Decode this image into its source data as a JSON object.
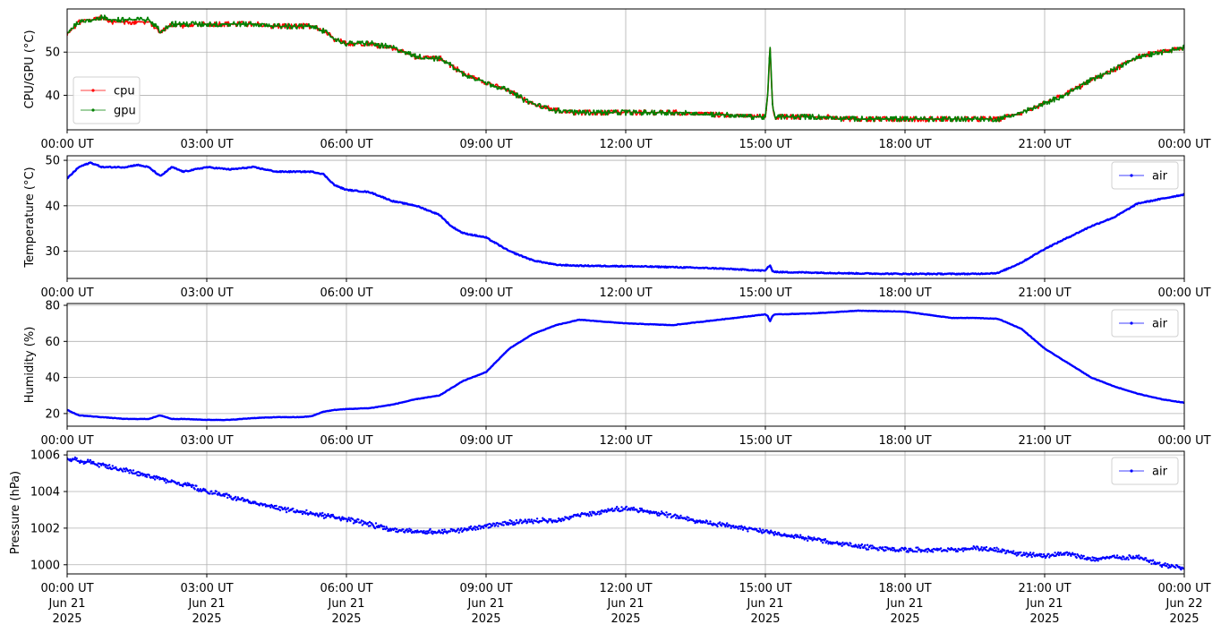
{
  "x_ticks": [
    "00:00 UT",
    "03:00 UT",
    "06:00 UT",
    "09:00 UT",
    "12:00 UT",
    "15:00 UT",
    "18:00 UT",
    "21:00 UT",
    "00:00 UT"
  ],
  "date_ticks": [
    {
      "md": "Jun 21",
      "y": "2025"
    },
    {
      "md": "Jun 21",
      "y": "2025"
    },
    {
      "md": "Jun 21",
      "y": "2025"
    },
    {
      "md": "Jun 21",
      "y": "2025"
    },
    {
      "md": "Jun 21",
      "y": "2025"
    },
    {
      "md": "Jun 21",
      "y": "2025"
    },
    {
      "md": "Jun 21",
      "y": "2025"
    },
    {
      "md": "Jun 21",
      "y": "2025"
    },
    {
      "md": "Jun 22",
      "y": "2025"
    }
  ],
  "chart_data": [
    {
      "type": "line",
      "ylabel": "CPU/GPU (°C)",
      "xlim": [
        "2025-06-21 00:00",
        "2025-06-22 00:00"
      ],
      "ylim": [
        32,
        60
      ],
      "yticks": [
        40,
        50
      ],
      "grid": true,
      "legend": "lower-left",
      "x_hours": [
        0,
        0.25,
        0.5,
        0.75,
        1,
        1.25,
        1.5,
        1.75,
        2,
        2.25,
        2.5,
        3,
        3.5,
        4,
        4.5,
        5,
        5.25,
        5.5,
        5.75,
        6,
        6.5,
        7,
        7.5,
        8,
        8.25,
        8.5,
        9,
        9.5,
        10,
        10.5,
        11,
        12,
        13,
        14,
        15,
        15.05,
        15.1,
        15.15,
        15.2,
        15.3,
        16,
        17,
        18,
        19,
        19.5,
        20,
        20.5,
        21,
        21.5,
        22,
        22.5,
        23,
        23.5,
        24
      ],
      "series": [
        {
          "name": "cpu",
          "color": "#ff0000",
          "values": [
            54,
            57,
            57.5,
            58,
            57,
            57,
            57,
            57,
            54.5,
            56.5,
            56,
            56.5,
            56.5,
            56.5,
            56,
            56,
            56,
            55,
            53,
            52,
            52,
            51,
            49,
            48.5,
            47,
            45,
            43,
            41,
            38,
            36.5,
            36,
            36,
            36,
            35.5,
            35,
            40,
            52,
            38,
            35,
            35,
            35,
            34.5,
            34.5,
            34.5,
            34.5,
            34.5,
            36,
            38,
            40.5,
            43.5,
            46,
            49,
            50,
            51
          ]
        },
        {
          "name": "gpu",
          "color": "#008000",
          "values": [
            54.5,
            57,
            57.5,
            58,
            57.5,
            57.5,
            57.5,
            57.5,
            55,
            56.5,
            56.5,
            56.5,
            56.5,
            56.5,
            56,
            56,
            56,
            55,
            53,
            52,
            52,
            51,
            49,
            48.5,
            47,
            45,
            43,
            41,
            38,
            36.5,
            36,
            36,
            36,
            35.5,
            35,
            40,
            52,
            38,
            35,
            35,
            35,
            34.5,
            34.5,
            34.5,
            34.5,
            34.5,
            36,
            38,
            40.5,
            43.5,
            46,
            49,
            50,
            51
          ]
        }
      ]
    },
    {
      "type": "line",
      "ylabel": "Temperature (°C)",
      "xlim": [
        "2025-06-21 00:00",
        "2025-06-22 00:00"
      ],
      "ylim": [
        24,
        51
      ],
      "yticks": [
        30,
        40,
        50
      ],
      "grid": true,
      "legend": "upper-right",
      "x_hours": [
        0,
        0.25,
        0.5,
        0.75,
        1,
        1.25,
        1.5,
        1.75,
        2,
        2.25,
        2.5,
        3,
        3.5,
        4,
        4.5,
        5,
        5.25,
        5.5,
        5.75,
        6,
        6.5,
        7,
        7.5,
        8,
        8.25,
        8.5,
        9,
        9.5,
        10,
        10.5,
        11,
        12,
        13,
        14,
        15,
        15.05,
        15.1,
        15.15,
        15.2,
        15.3,
        16,
        17,
        18,
        19,
        19.5,
        20,
        20.5,
        21,
        21.5,
        22,
        22.5,
        23,
        23.5,
        24
      ],
      "series": [
        {
          "name": "air",
          "color": "#0000ff",
          "values": [
            46,
            48.5,
            49.5,
            48.5,
            48.5,
            48.5,
            49,
            48.5,
            46.5,
            48.5,
            47.5,
            48.5,
            48,
            48.5,
            47.5,
            47.5,
            47.5,
            47,
            44.5,
            43.5,
            43,
            41,
            40,
            38,
            35.5,
            34,
            33,
            30,
            28,
            27,
            26.8,
            26.7,
            26.5,
            26.2,
            25.7,
            26.5,
            26.8,
            25.7,
            25.5,
            25.4,
            25.3,
            25.1,
            25.0,
            25.0,
            25.0,
            25.2,
            27.5,
            30.5,
            33,
            35.5,
            37.5,
            40.5,
            41.5,
            42.5
          ]
        }
      ]
    },
    {
      "type": "line",
      "ylabel": "Humidity (%)",
      "xlim": [
        "2025-06-21 00:00",
        "2025-06-22 00:00"
      ],
      "ylim": [
        13,
        81
      ],
      "yticks": [
        20,
        40,
        60,
        80
      ],
      "grid": true,
      "legend": "upper-right",
      "x_hours": [
        0,
        0.25,
        0.5,
        0.75,
        1,
        1.25,
        1.5,
        1.75,
        2,
        2.25,
        2.5,
        3,
        3.5,
        4,
        4.5,
        5,
        5.25,
        5.5,
        5.75,
        6,
        6.5,
        7,
        7.5,
        8,
        8.25,
        8.5,
        9,
        9.5,
        10,
        10.5,
        11,
        12,
        13,
        14,
        15,
        15.05,
        15.1,
        15.15,
        15.2,
        15.3,
        16,
        17,
        18,
        19,
        19.5,
        20,
        20.5,
        21,
        21.5,
        22,
        22.5,
        23,
        23.5,
        24
      ],
      "series": [
        {
          "name": "air",
          "color": "#0000ff",
          "values": [
            22,
            19,
            18.5,
            18,
            17.5,
            17,
            17,
            17,
            19,
            17,
            17,
            16.5,
            16.5,
            17.5,
            18,
            18,
            18.5,
            21,
            22,
            22.5,
            23,
            25,
            28,
            30,
            34,
            38,
            43,
            56,
            64,
            69,
            72,
            70,
            69,
            72,
            75,
            74,
            71,
            74,
            75,
            75,
            75.5,
            77,
            76.5,
            73,
            73,
            72.5,
            67,
            56,
            48,
            40,
            35,
            31,
            28,
            26
          ]
        }
      ]
    },
    {
      "type": "scatter",
      "ylabel": "Pressure (hPa)",
      "xlim": [
        "2025-06-21 00:00",
        "2025-06-22 00:00"
      ],
      "ylim": [
        999.5,
        1006.2
      ],
      "yticks": [
        1000,
        1002,
        1004,
        1006
      ],
      "grid": true,
      "legend": "upper-right",
      "x_hours": [
        0,
        0.5,
        1,
        1.5,
        2,
        2.5,
        3,
        3.5,
        4,
        4.5,
        5,
        5.5,
        6,
        6.5,
        7,
        7.5,
        8,
        8.5,
        9,
        9.5,
        10,
        10.5,
        11,
        11.5,
        12,
        12.5,
        13,
        13.5,
        14,
        14.5,
        15,
        15.5,
        16,
        16.5,
        17,
        17.5,
        18,
        18.5,
        19,
        19.5,
        20,
        20.5,
        21,
        21.5,
        22,
        22.5,
        23,
        23.5,
        24
      ],
      "series": [
        {
          "name": "air",
          "color": "#0000ff",
          "values": [
            1005.8,
            1005.6,
            1005.3,
            1005.0,
            1004.7,
            1004.4,
            1004.0,
            1003.7,
            1003.4,
            1003.1,
            1002.9,
            1002.7,
            1002.5,
            1002.2,
            1001.9,
            1001.8,
            1001.8,
            1001.9,
            1002.1,
            1002.3,
            1002.4,
            1002.4,
            1002.7,
            1002.9,
            1003.1,
            1002.9,
            1002.7,
            1002.4,
            1002.2,
            1002.0,
            1001.8,
            1001.6,
            1001.4,
            1001.2,
            1001.0,
            1000.9,
            1000.8,
            1000.8,
            1000.8,
            1000.9,
            1000.8,
            1000.6,
            1000.5,
            1000.6,
            1000.3,
            1000.4,
            1000.4,
            1000.0,
            999.8
          ]
        }
      ]
    }
  ]
}
